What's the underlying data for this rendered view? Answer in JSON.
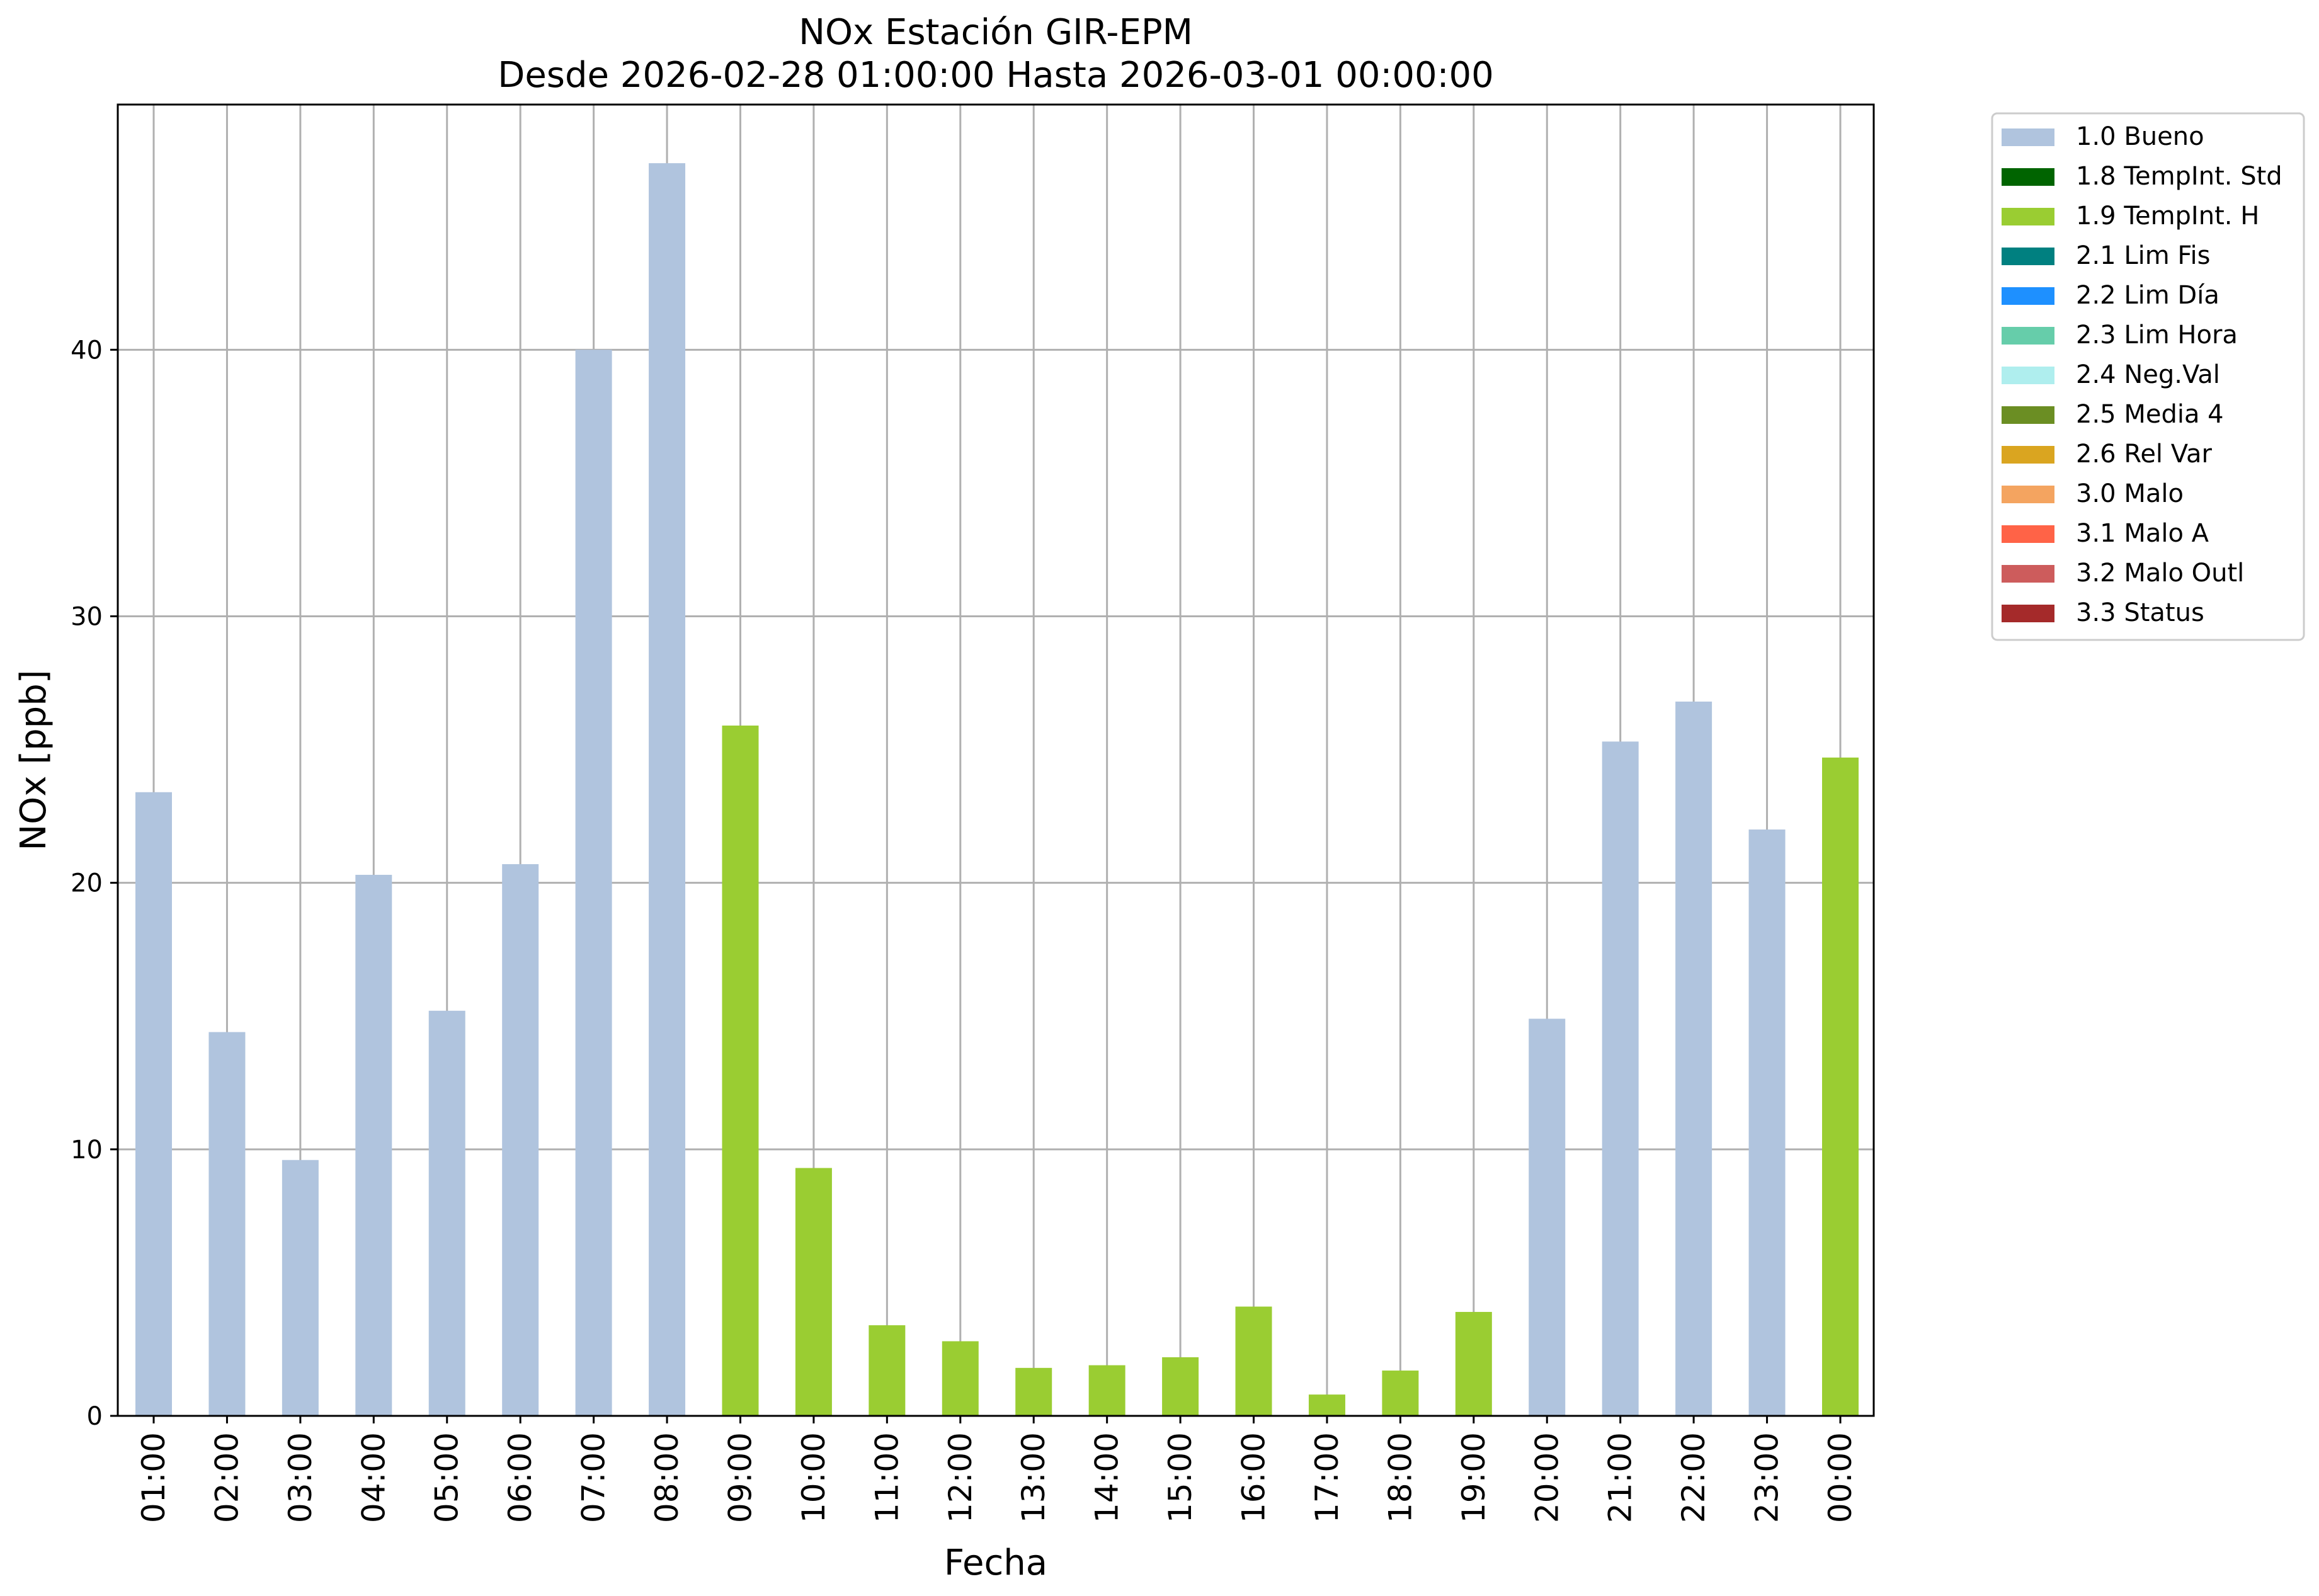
{
  "chart_data": {
    "type": "bar",
    "title": "NOx Estación GIR-EPM",
    "subtitle": "Desde 2026-02-28 01:00:00 Hasta 2026-03-01 00:00:00",
    "xlabel": "Fecha",
    "ylabel": "NOx [ppb]",
    "ylim": [
      0,
      49.2
    ],
    "yticks": [
      0,
      10,
      20,
      30,
      40
    ],
    "grid": true,
    "legend_position": "outside-top-right",
    "categories": [
      "01:00",
      "02:00",
      "03:00",
      "04:00",
      "05:00",
      "06:00",
      "07:00",
      "08:00",
      "09:00",
      "10:00",
      "11:00",
      "12:00",
      "13:00",
      "14:00",
      "15:00",
      "16:00",
      "17:00",
      "18:00",
      "19:00",
      "20:00",
      "21:00",
      "22:00",
      "23:00",
      "00:00"
    ],
    "values": [
      23.4,
      14.4,
      9.6,
      20.3,
      15.2,
      20.7,
      40.0,
      47.0,
      25.9,
      9.3,
      3.4,
      2.8,
      1.8,
      1.9,
      2.2,
      4.1,
      0.8,
      1.7,
      3.9,
      14.9,
      25.3,
      26.8,
      22.0,
      24.7
    ],
    "flags": [
      "1.0 Bueno",
      "1.0 Bueno",
      "1.0 Bueno",
      "1.0 Bueno",
      "1.0 Bueno",
      "1.0 Bueno",
      "1.0 Bueno",
      "1.0 Bueno",
      "1.9 TempInt. H",
      "1.9 TempInt. H",
      "1.9 TempInt. H",
      "1.9 TempInt. H",
      "1.9 TempInt. H",
      "1.9 TempInt. H",
      "1.9 TempInt. H",
      "1.9 TempInt. H",
      "1.9 TempInt. H",
      "1.9 TempInt. H",
      "1.9 TempInt. H",
      "1.0 Bueno",
      "1.0 Bueno",
      "1.0 Bueno",
      "1.0 Bueno",
      "1.9 TempInt. H"
    ],
    "legend": [
      {
        "label": "1.0 Bueno",
        "color": "#b0c4de"
      },
      {
        "label": "1.8 TempInt. Std",
        "color": "#006400"
      },
      {
        "label": "1.9 TempInt. H",
        "color": "#9acd32"
      },
      {
        "label": "2.1 Lim Fis",
        "color": "#008080"
      },
      {
        "label": "2.2 Lim Día",
        "color": "#1e90ff"
      },
      {
        "label": "2.3 Lim Hora",
        "color": "#66cdaa"
      },
      {
        "label": "2.4 Neg.Val",
        "color": "#afeeee"
      },
      {
        "label": "2.5 Media 4",
        "color": "#6b8e23"
      },
      {
        "label": "2.6 Rel Var",
        "color": "#daa520"
      },
      {
        "label": "3.0 Malo",
        "color": "#f4a460"
      },
      {
        "label": "3.1 Malo A",
        "color": "#ff6347"
      },
      {
        "label": "3.2 Malo Outl",
        "color": "#cd5c5c"
      },
      {
        "label": "3.3 Status",
        "color": "#a52a2a"
      }
    ]
  }
}
